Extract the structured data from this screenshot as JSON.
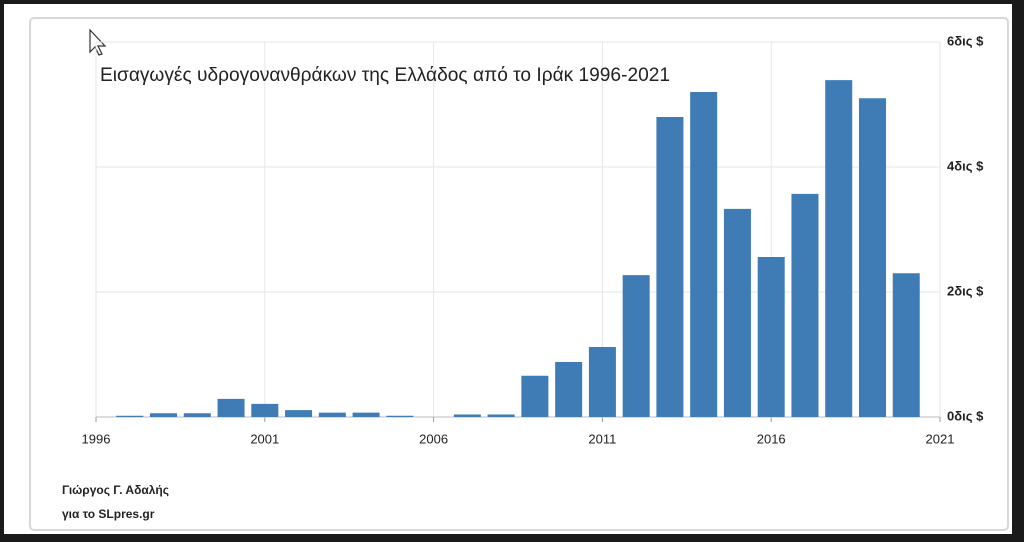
{
  "chart_data": {
    "type": "bar",
    "title": "Εισαγωγές υδρογονανθράκων της Ελλάδος από το Ιράκ 1996-2021",
    "credits": [
      "Γιώργος Γ. Αδαλής",
      "για το SLpres.gr"
    ],
    "x": [
      1997,
      1998,
      1999,
      2000,
      2001,
      2002,
      2003,
      2004,
      2005,
      2006,
      2007,
      2008,
      2009,
      2010,
      2011,
      2012,
      2013,
      2014,
      2015,
      2016,
      2017,
      2018,
      2019,
      2020
    ],
    "values": [
      0.02,
      0.06,
      0.06,
      0.29,
      0.21,
      0.11,
      0.07,
      0.07,
      0.02,
      0,
      0.04,
      0.04,
      0.66,
      0.88,
      1.12,
      2.27,
      4.8,
      5.2,
      3.33,
      2.56,
      3.57,
      5.39,
      5.1,
      2.3
    ],
    "color": "#3f7cb6",
    "xlim": [
      1996,
      2021
    ],
    "xticks": [
      1996,
      2001,
      2006,
      2011,
      2016,
      2021
    ],
    "ylim": [
      0,
      6
    ],
    "yticks": [
      {
        "value": 0,
        "label": "0δις $"
      },
      {
        "value": 2,
        "label": "2δις $"
      },
      {
        "value": 4,
        "label": "4δις $"
      },
      {
        "value": 6,
        "label": "6δις $"
      }
    ],
    "grid": true
  }
}
